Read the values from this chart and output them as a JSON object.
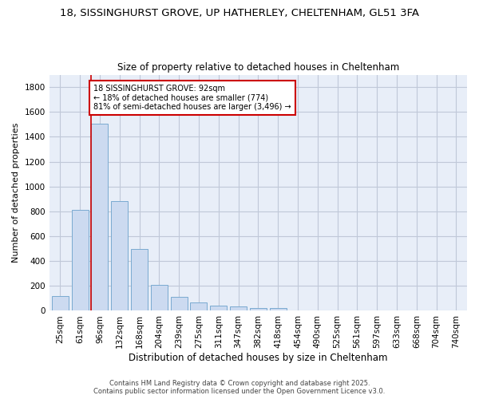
{
  "title_line1": "18, SISSINGHURST GROVE, UP HATHERLEY, CHELTENHAM, GL51 3FA",
  "title_line2": "Size of property relative to detached houses in Cheltenham",
  "xlabel": "Distribution of detached houses by size in Cheltenham",
  "ylabel": "Number of detached properties",
  "categories": [
    "25sqm",
    "61sqm",
    "96sqm",
    "132sqm",
    "168sqm",
    "204sqm",
    "239sqm",
    "275sqm",
    "311sqm",
    "347sqm",
    "382sqm",
    "418sqm",
    "454sqm",
    "490sqm",
    "525sqm",
    "561sqm",
    "597sqm",
    "633sqm",
    "668sqm",
    "704sqm",
    "740sqm"
  ],
  "bar_values": [
    120,
    810,
    1505,
    885,
    500,
    210,
    110,
    65,
    40,
    32,
    25,
    20,
    0,
    0,
    0,
    0,
    0,
    0,
    0,
    0,
    0
  ],
  "bar_color": "#ccdaf0",
  "bar_edge_color": "#7aaad0",
  "bar_edge_width": 0.7,
  "red_line_x": 2,
  "red_line_color": "#cc0000",
  "annotation_text": "18 SISSINGHURST GROVE: 92sqm\n← 18% of detached houses are smaller (774)\n81% of semi-detached houses are larger (3,496) →",
  "annotation_box_color": "#ffffff",
  "annotation_box_edge_color": "#cc0000",
  "annotation_fontsize": 7.0,
  "ylim": [
    0,
    1900
  ],
  "yticks": [
    0,
    200,
    400,
    600,
    800,
    1000,
    1200,
    1400,
    1600,
    1800
  ],
  "grid_color": "#c0c8d8",
  "background_color": "#e8eef8",
  "title_fontsize1": 9.5,
  "title_fontsize2": 8.5,
  "xlabel_fontsize": 8.5,
  "ylabel_fontsize": 8.0,
  "tick_fontsize": 7.5,
  "footer_line1": "Contains HM Land Registry data © Crown copyright and database right 2025.",
  "footer_line2": "Contains public sector information licensed under the Open Government Licence v3.0.",
  "footer_fontsize": 6.0
}
